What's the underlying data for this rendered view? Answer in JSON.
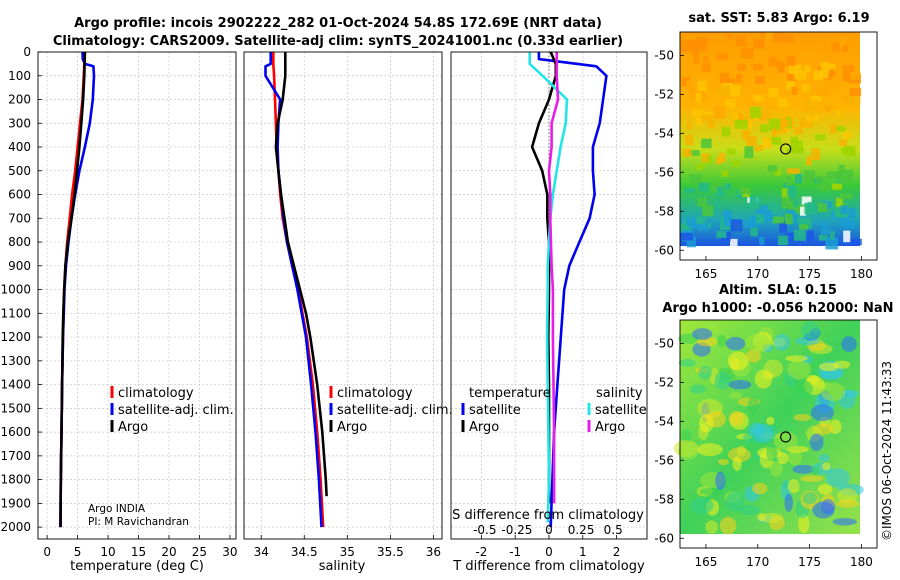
{
  "titles": {
    "line1": "Argo profile: incois 2902222_282 01-Oct-2024 54.8S 172.69E (NRT data)",
    "line2": "Climatology: CARS2009. Satellite-adj clim: synTS_20241001.nc (0.33d earlier)"
  },
  "colors": {
    "climatology": "#ff0000",
    "satellite": "#0000ee",
    "argo": "#000000",
    "sal_satellite": "#22e5e8",
    "sal_argo": "#e81ee8"
  },
  "depth_axis": {
    "ylim": [
      0,
      2050
    ],
    "ticks": [
      0,
      100,
      200,
      300,
      400,
      500,
      600,
      700,
      800,
      900,
      1000,
      1100,
      1200,
      1300,
      1400,
      1500,
      1600,
      1700,
      1800,
      1900,
      2000
    ],
    "tick_labels": [
      "0",
      "100",
      "200",
      "300",
      "400",
      "500",
      "600",
      "700",
      "800",
      "900",
      "1000",
      "1100",
      "1200",
      "1300",
      "1400",
      "1500",
      "1600",
      "1700",
      "1800",
      "1900",
      "2000"
    ]
  },
  "panels": {
    "temperature": {
      "xlabel": "temperature (deg C)",
      "xlim": [
        -1.5,
        31
      ],
      "xticks": [
        0,
        5,
        10,
        15,
        20,
        25,
        30
      ],
      "xtick_labels": [
        "0",
        "5",
        "10",
        "15",
        "20",
        "25",
        "30"
      ],
      "legend": [
        "climatology",
        "satellite-adj. clim.",
        "Argo"
      ],
      "credit": [
        "Argo INDIA",
        "PI: M Ravichandran"
      ]
    },
    "salinity": {
      "xlabel": "salinity",
      "xlim": [
        33.8,
        36.1
      ],
      "xticks": [
        34,
        34.5,
        35,
        35.5,
        36
      ],
      "xtick_labels": [
        "34",
        "34.5",
        "35",
        "35.5",
        "36"
      ],
      "legend": [
        "climatology",
        "satellite-adj. clim.",
        "Argo"
      ]
    },
    "difference": {
      "xlabel": "T difference from climatology",
      "xlabel_top": "S difference from climatology",
      "xlim": [
        -2.9,
        2.9
      ],
      "xticks": [
        -2,
        -1,
        0,
        1,
        2
      ],
      "xtick_labels": [
        "-2",
        "-1",
        "0",
        "1",
        "2"
      ],
      "s_ticks": [
        -0.5,
        -0.25,
        0,
        0.25,
        0.5
      ],
      "s_tick_labels": [
        "-0.5",
        "-0.25",
        "0",
        "0.25",
        "0.5"
      ],
      "legend_left_title": "temperature",
      "legend_right_title": "salinity",
      "legend_left": [
        "satellite",
        "Argo"
      ],
      "legend_right": [
        "satellite",
        "Argo"
      ]
    }
  },
  "maps": {
    "sst": {
      "title": "sat. SST: 5.83 Argo: 6.19"
    },
    "sla": {
      "title_line1": "Altim. SLA: 0.15",
      "title_line2": "Argo h1000: -0.056 h2000: NaN"
    },
    "xticks": [
      165,
      170,
      175,
      180
    ],
    "xtick_labels": [
      "165",
      "170",
      "175",
      "180"
    ],
    "yticks": [
      -50,
      -52,
      -54,
      -56,
      -58,
      -60
    ],
    "ytick_labels": [
      "-50",
      "-52",
      "-54",
      "-56",
      "-58",
      "-60"
    ],
    "xlim": [
      162.5,
      181.5
    ],
    "ylim": [
      -60.5,
      -48.8
    ],
    "argo_position": {
      "lon": 172.69,
      "lat": -54.8
    }
  },
  "watermark": "©IMOS 06-Oct-2024 11:43:33",
  "chart_data": [
    {
      "type": "line",
      "title": "temperature",
      "xlabel": "temperature (deg C)",
      "ylabel": "depth",
      "series": [
        {
          "name": "climatology",
          "color_key": "climatology",
          "depth": [
            0,
            50,
            100,
            200,
            300,
            400,
            500,
            600,
            700,
            800,
            900,
            1000,
            1200,
            1400,
            1600,
            1800,
            2000
          ],
          "values": [
            6.2,
            6.1,
            6.0,
            5.8,
            5.4,
            5.0,
            4.6,
            4.1,
            3.7,
            3.3,
            3.0,
            2.8,
            2.6,
            2.45,
            2.35,
            2.25,
            2.2
          ]
        },
        {
          "name": "satellite-adj. clim.",
          "color_key": "satellite",
          "depth": [
            0,
            30,
            50,
            60,
            100,
            150,
            200,
            300,
            400,
            500,
            600,
            700,
            800,
            900,
            1000,
            1200,
            1400,
            1600,
            1800,
            2000
          ],
          "values": [
            5.8,
            5.85,
            6.2,
            7.6,
            7.7,
            7.6,
            7.5,
            7.0,
            6.2,
            5.3,
            4.6,
            4.0,
            3.5,
            3.1,
            2.85,
            2.6,
            2.45,
            2.35,
            2.25,
            2.2
          ]
        },
        {
          "name": "Argo",
          "color_key": "argo",
          "depth": [
            0,
            100,
            200,
            300,
            400,
            500,
            600,
            700,
            800,
            900,
            1000,
            1100,
            1200,
            1400,
            1600,
            1800,
            2000
          ],
          "values": [
            6.2,
            6.1,
            5.9,
            5.6,
            5.3,
            4.9,
            4.5,
            4.0,
            3.4,
            3.0,
            2.8,
            2.65,
            2.55,
            2.45,
            2.35,
            2.25,
            2.2
          ]
        }
      ]
    },
    {
      "type": "line",
      "title": "salinity",
      "xlabel": "salinity",
      "ylabel": "depth",
      "series": [
        {
          "name": "climatology",
          "color_key": "climatology",
          "depth": [
            0,
            50,
            100,
            200,
            300,
            400,
            500,
            600,
            700,
            800,
            900,
            1000,
            1200,
            1400,
            1600,
            1800,
            2000
          ],
          "values": [
            34.14,
            34.14,
            34.15,
            34.16,
            34.17,
            34.18,
            34.2,
            34.22,
            34.25,
            34.3,
            34.36,
            34.43,
            34.53,
            34.6,
            34.65,
            34.69,
            34.72
          ]
        },
        {
          "name": "satellite-adj. clim.",
          "color_key": "satellite",
          "depth": [
            0,
            50,
            60,
            100,
            200,
            300,
            400,
            500,
            600,
            700,
            800,
            900,
            1000,
            1200,
            1400,
            1600,
            1800,
            2000
          ],
          "values": [
            34.11,
            34.11,
            34.05,
            34.05,
            34.22,
            34.2,
            34.19,
            34.2,
            34.23,
            34.26,
            34.3,
            34.36,
            34.42,
            34.52,
            34.58,
            34.63,
            34.67,
            34.7
          ]
        },
        {
          "name": "Argo",
          "color_key": "argo",
          "depth": [
            0,
            100,
            200,
            300,
            400,
            500,
            600,
            700,
            800,
            900,
            1000,
            1100,
            1200,
            1400,
            1600,
            1800,
            1870
          ],
          "values": [
            34.28,
            34.28,
            34.25,
            34.19,
            34.17,
            34.2,
            34.23,
            34.27,
            34.31,
            34.38,
            34.45,
            34.52,
            34.57,
            34.65,
            34.71,
            34.75,
            34.76
          ]
        }
      ]
    },
    {
      "type": "line",
      "title": "difference from climatology",
      "xlabel": "T difference from climatology",
      "ylabel": "depth",
      "series": [
        {
          "name": "temperature satellite",
          "color_key": "satellite",
          "units": "T",
          "depth": [
            0,
            30,
            60,
            100,
            200,
            300,
            400,
            500,
            600,
            700,
            800,
            900,
            1000,
            1200,
            1400,
            1600,
            1800,
            2000
          ],
          "values": [
            -0.3,
            -0.3,
            1.4,
            1.7,
            1.6,
            1.5,
            1.3,
            1.3,
            1.35,
            1.2,
            0.9,
            0.6,
            0.45,
            0.35,
            0.25,
            0.15,
            0.1,
            0.05
          ]
        },
        {
          "name": "temperature Argo",
          "color_key": "argo",
          "units": "T",
          "depth": [
            0,
            50,
            100,
            200,
            300,
            400,
            500,
            600,
            700,
            800,
            900,
            1000,
            1200,
            1400,
            1600,
            1800,
            1900
          ],
          "values": [
            0.05,
            0.2,
            0.2,
            0.0,
            -0.3,
            -0.5,
            -0.2,
            -0.05,
            -0.05,
            0.0,
            0.0,
            0.0,
            -0.02,
            0.0,
            0.0,
            0.0,
            0.0
          ]
        },
        {
          "name": "salinity satellite",
          "color_key": "sal_satellite",
          "units": "S",
          "depth": [
            0,
            50,
            100,
            200,
            300,
            400,
            500,
            600,
            700,
            800,
            900,
            1000,
            1200,
            1400,
            1600,
            1800,
            1980
          ],
          "values": [
            -0.15,
            -0.15,
            -0.05,
            0.14,
            0.13,
            0.09,
            0.06,
            0.03,
            0.01,
            0.0,
            -0.01,
            -0.01,
            -0.015,
            -0.01,
            -0.005,
            0.0,
            -0.01
          ]
        },
        {
          "name": "salinity Argo",
          "color_key": "sal_argo",
          "units": "S",
          "depth": [
            0,
            100,
            200,
            300,
            400,
            500,
            600,
            700,
            800,
            900,
            1000,
            1200,
            1400,
            1600,
            1800,
            1900
          ],
          "values": [
            0.06,
            0.06,
            0.07,
            0.02,
            0.02,
            0.0,
            0.01,
            0.01,
            0.015,
            0.02,
            0.03,
            0.03,
            0.035,
            0.04,
            0.04,
            0.04
          ]
        }
      ]
    }
  ]
}
